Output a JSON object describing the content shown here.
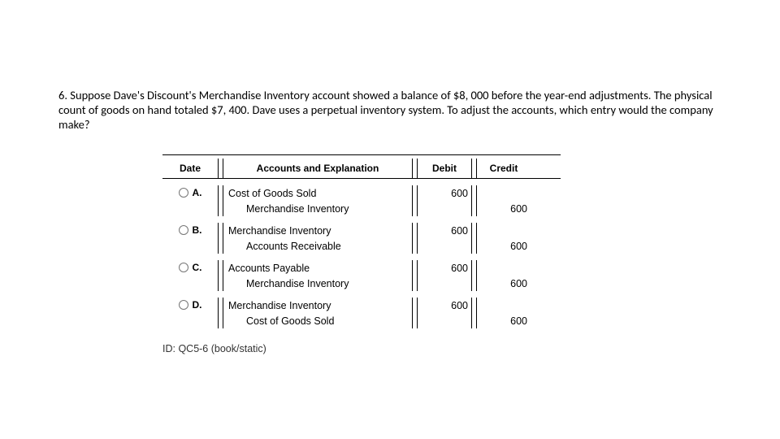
{
  "question": "6. Suppose Dave's Discount's Merchandise Inventory account showed a balance of $8, 000 before the year-end adjustments. The physical count of goods on hand totaled $7, 400. Dave uses a perpetual inventory system. To adjust the accounts, which entry would the company make?",
  "headers": {
    "date": "Date",
    "accounts": "Accounts and Explanation",
    "debit": "Debit",
    "credit": "Credit"
  },
  "options": {
    "A": {
      "label": "A.",
      "line1": "Cost of Goods Sold",
      "line2": "Merchandise Inventory",
      "debit": "600",
      "credit": "600"
    },
    "B": {
      "label": "B.",
      "line1": "Merchandise Inventory",
      "line2": "Accounts Receivable",
      "debit": "600",
      "credit": "600"
    },
    "C": {
      "label": "C.",
      "line1": "Accounts Payable",
      "line2": "Merchandise Inventory",
      "debit": "600",
      "credit": "600"
    },
    "D": {
      "label": "D.",
      "line1": "Merchandise Inventory",
      "line2": "Cost of Goods Sold",
      "debit": "600",
      "credit": "600"
    }
  },
  "idline": "ID: QC5-6 (book/static)"
}
